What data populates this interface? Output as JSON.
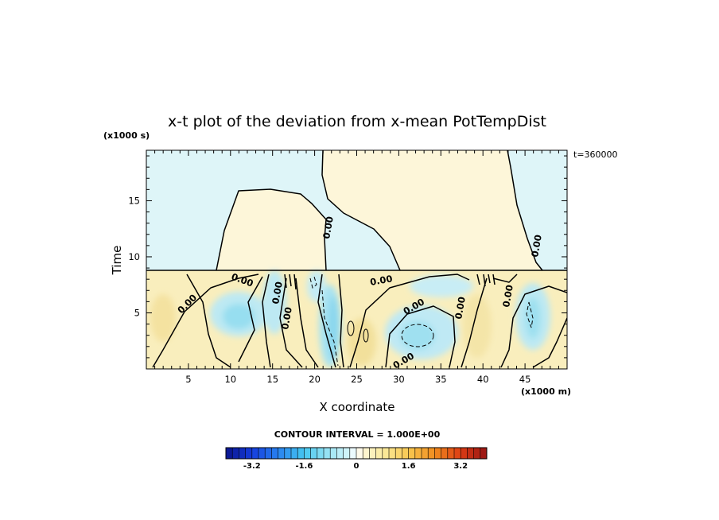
{
  "chart_data": {
    "type": "heatmap",
    "title": "x-t plot of the deviation from x-mean PotTempDist",
    "xlabel": "X coordinate",
    "ylabel": "Time",
    "x_unit": "(x1000 m)",
    "y_unit": "(x1000 s)",
    "time_label": "t=360000",
    "xlim": [
      0,
      50
    ],
    "ylim": [
      0,
      19.5
    ],
    "xticks": [
      5,
      10,
      15,
      20,
      25,
      30,
      35,
      40,
      45
    ],
    "yticks": [
      5,
      10,
      15
    ],
    "contour_interval_label": "CONTOUR INTERVAL = 1.000E+00",
    "contour_labels": [
      "0.00",
      "0.00",
      "0.00",
      "0.00",
      "0.00",
      "0.00",
      "0.00",
      "0.00",
      "0.00",
      "0.00",
      "0.00"
    ],
    "colorbar": {
      "range": [
        -4,
        4
      ],
      "step": 0.2,
      "ticks": [
        -3.2,
        -1.6,
        0,
        1.6,
        3.2
      ],
      "tick_labels": [
        "-3.2",
        "-1.6",
        "0",
        "1.6",
        "3.2"
      ]
    },
    "grid": false
  },
  "colors": {
    "positive_weak": "#fdf6d8",
    "positive_mid": "#f7ebb0",
    "negative_weak": "#dcf4f8",
    "negative_mid": "#bfe9f4",
    "negative_strong": "#93dcef"
  }
}
